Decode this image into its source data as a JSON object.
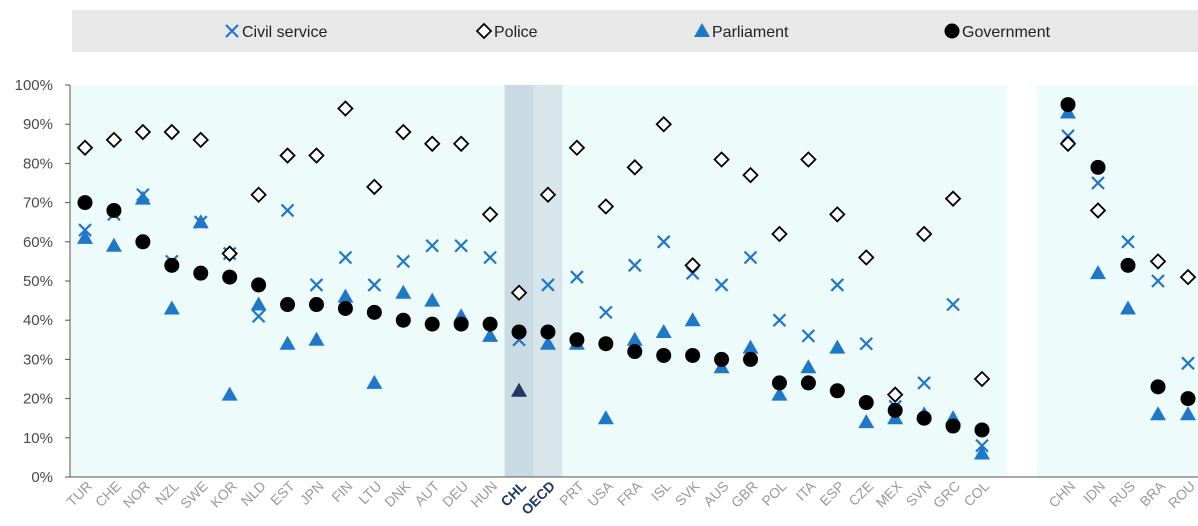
{
  "chart_data": {
    "type": "scatter",
    "title": "",
    "xlabel": "",
    "ylabel": "",
    "ylim": [
      0,
      100
    ],
    "y_ticks": [
      "0%",
      "10%",
      "20%",
      "30%",
      "40%",
      "50%",
      "60%",
      "70%",
      "80%",
      "90%",
      "100%"
    ],
    "grid": false,
    "legend_position": "top",
    "highlighted": [
      "CHL",
      "OECD"
    ],
    "groups": [
      [
        "TUR",
        "CHE",
        "NOR",
        "NZL",
        "SWE",
        "KOR",
        "NLD",
        "EST",
        "JPN",
        "FIN",
        "LTU",
        "DNK",
        "AUT",
        "DEU",
        "HUN",
        "CHL",
        "OECD",
        "PRT",
        "USA",
        "FRA",
        "ISL",
        "SVK",
        "AUS",
        "GBR",
        "POL",
        "ITA",
        "ESP",
        "CZE",
        "MEX",
        "SVN",
        "GRC",
        "COL"
      ],
      [
        "CHN",
        "IDN",
        "RUS",
        "BRA",
        "ROU"
      ]
    ],
    "categories": [
      "TUR",
      "CHE",
      "NOR",
      "NZL",
      "SWE",
      "KOR",
      "NLD",
      "EST",
      "JPN",
      "FIN",
      "LTU",
      "DNK",
      "AUT",
      "DEU",
      "HUN",
      "CHL",
      "OECD",
      "PRT",
      "USA",
      "FRA",
      "ISL",
      "SVK",
      "AUS",
      "GBR",
      "POL",
      "ITA",
      "ESP",
      "CZE",
      "MEX",
      "SVN",
      "GRC",
      "COL",
      "CHN",
      "IDN",
      "RUS",
      "BRA",
      "ROU"
    ],
    "series": [
      {
        "name": "Civil service",
        "marker": "x",
        "color": "#1f77c8",
        "values": [
          63,
          67,
          72,
          55,
          65,
          57,
          41,
          68,
          49,
          56,
          49,
          55,
          59,
          59,
          56,
          35,
          49,
          51,
          42,
          54,
          60,
          52,
          49,
          56,
          40,
          36,
          49,
          34,
          18,
          24,
          44,
          8,
          87,
          75,
          60,
          50,
          29
        ]
      },
      {
        "name": "Police",
        "marker": "diamond",
        "color": "#000000",
        "values": [
          84,
          86,
          88,
          88,
          86,
          57,
          72,
          82,
          82,
          94,
          74,
          88,
          85,
          85,
          67,
          47,
          72,
          84,
          69,
          79,
          90,
          54,
          81,
          77,
          62,
          81,
          67,
          56,
          21,
          62,
          71,
          25,
          85,
          68,
          null,
          55,
          51
        ]
      },
      {
        "name": "Parliament",
        "marker": "triangle",
        "color": "#1f77c8",
        "values": [
          61,
          59,
          71,
          43,
          65,
          21,
          44,
          34,
          35,
          46,
          24,
          47,
          45,
          41,
          36,
          22,
          34,
          34,
          15,
          35,
          37,
          40,
          28,
          33,
          21,
          28,
          33,
          14,
          15,
          16,
          15,
          6,
          93,
          52,
          43,
          16,
          16
        ]
      },
      {
        "name": "Government",
        "marker": "circle",
        "color": "#000000",
        "values": [
          70,
          68,
          60,
          54,
          52,
          51,
          49,
          44,
          44,
          43,
          42,
          40,
          39,
          39,
          39,
          37,
          37,
          35,
          34,
          32,
          31,
          31,
          30,
          30,
          24,
          24,
          22,
          19,
          17,
          15,
          13,
          12,
          95,
          79,
          54,
          23,
          20
        ]
      }
    ]
  },
  "colors": {
    "band": "#eefbfb",
    "highlight_chl": "#c9dae2",
    "highlight_oecd": "#d8e6ec",
    "legend_bg": "#e8e8e8",
    "chl_triangle": "#1f3864",
    "axis": "#555555"
  }
}
